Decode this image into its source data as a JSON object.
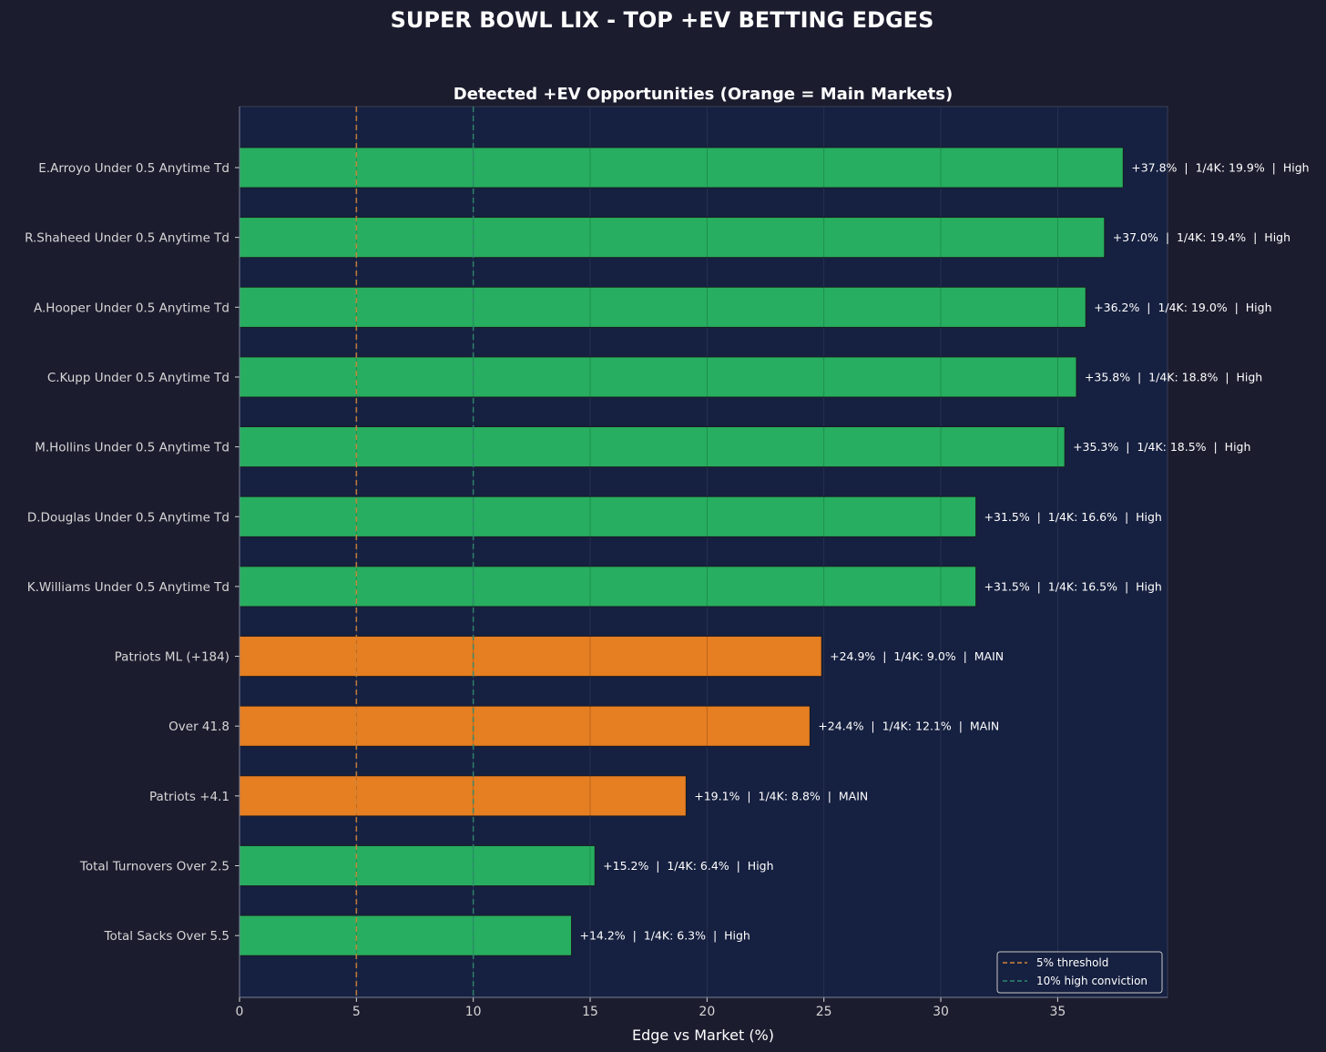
{
  "chart_data": {
    "type": "bar",
    "orientation": "horizontal",
    "suptitle": "SUPER BOWL LIX - TOP +EV BETTING EDGES",
    "title": "Detected +EV Opportunities (Orange = Main Markets)",
    "xlabel": "Edge vs Market (%)",
    "ylabel": "",
    "xlim": [
      0,
      39.7
    ],
    "xticks": [
      "0",
      "5",
      "10",
      "15",
      "20",
      "25",
      "30",
      "35"
    ],
    "grid": "vertical",
    "colors": {
      "figure_bg": "#1b1c2e",
      "axes_bg": "#162040",
      "prop_bar": "#27ae60",
      "main_bar": "#e67e22",
      "threshold_line": "#d4843a",
      "conviction_line": "#2e8b6e",
      "text": "#ffffff",
      "tick_text": "#d6d6d6"
    },
    "bars": [
      {
        "label": "E.Arroyo Under 0.5 Anytime Td",
        "value": 37.8,
        "annotation": "+37.8%  |  1/4K: 19.9%  |  High",
        "market": "prop"
      },
      {
        "label": "R.Shaheed Under 0.5 Anytime Td",
        "value": 37.0,
        "annotation": "+37.0%  |  1/4K: 19.4%  |  High",
        "market": "prop"
      },
      {
        "label": "A.Hooper Under 0.5 Anytime Td",
        "value": 36.2,
        "annotation": "+36.2%  |  1/4K: 19.0%  |  High",
        "market": "prop"
      },
      {
        "label": "C.Kupp Under 0.5 Anytime Td",
        "value": 35.8,
        "annotation": "+35.8%  |  1/4K: 18.8%  |  High",
        "market": "prop"
      },
      {
        "label": "M.Hollins Under 0.5 Anytime Td",
        "value": 35.3,
        "annotation": "+35.3%  |  1/4K: 18.5%  |  High",
        "market": "prop"
      },
      {
        "label": "D.Douglas Under 0.5 Anytime Td",
        "value": 31.5,
        "annotation": "+31.5%  |  1/4K: 16.6%  |  High",
        "market": "prop"
      },
      {
        "label": "K.Williams Under 0.5 Anytime Td",
        "value": 31.5,
        "annotation": "+31.5%  |  1/4K: 16.5%  |  High",
        "market": "prop"
      },
      {
        "label": "Patriots ML (+184)",
        "value": 24.9,
        "annotation": "+24.9%  |  1/4K: 9.0%  |  MAIN",
        "market": "main"
      },
      {
        "label": "Over 41.8",
        "value": 24.4,
        "annotation": "+24.4%  |  1/4K: 12.1%  |  MAIN",
        "market": "main"
      },
      {
        "label": "Patriots +4.1",
        "value": 19.1,
        "annotation": "+19.1%  |  1/4K: 8.8%  |  MAIN",
        "market": "main"
      },
      {
        "label": "Total Turnovers Over 2.5",
        "value": 15.2,
        "annotation": "+15.2%  |  1/4K: 6.4%  |  High",
        "market": "prop"
      },
      {
        "label": "Total Sacks Over 5.5",
        "value": 14.2,
        "annotation": "+14.2%  |  1/4K: 6.3%  |  High",
        "market": "prop"
      }
    ],
    "reference_lines": [
      {
        "x": 5,
        "label": "5% threshold",
        "color_key": "threshold_line"
      },
      {
        "x": 10,
        "label": "10% high conviction",
        "color_key": "conviction_line"
      }
    ],
    "legend_position": "lower-right"
  }
}
